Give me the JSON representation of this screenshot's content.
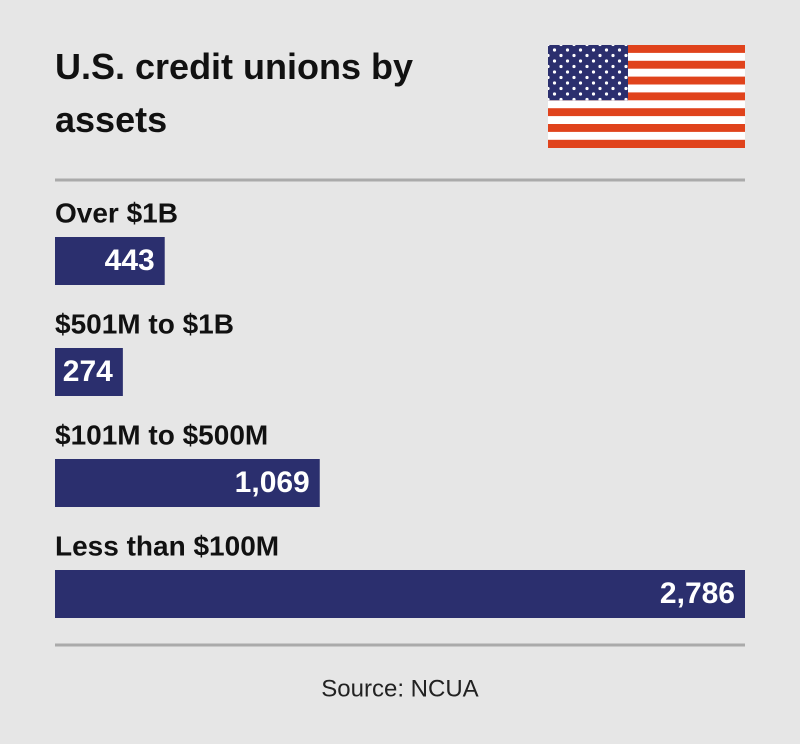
{
  "chart_data": {
    "type": "bar",
    "orientation": "horizontal",
    "title": "U.S. credit unions by assets",
    "categories": [
      "Over $1B",
      "$501M to $1B",
      "$101M to $500M",
      "Less than $100M"
    ],
    "values": [
      443,
      274,
      1069,
      2786
    ],
    "value_labels": [
      "443",
      "274",
      "1,069",
      "2,786"
    ],
    "color": "#2b2f6e",
    "source": "Source: NCUA"
  }
}
